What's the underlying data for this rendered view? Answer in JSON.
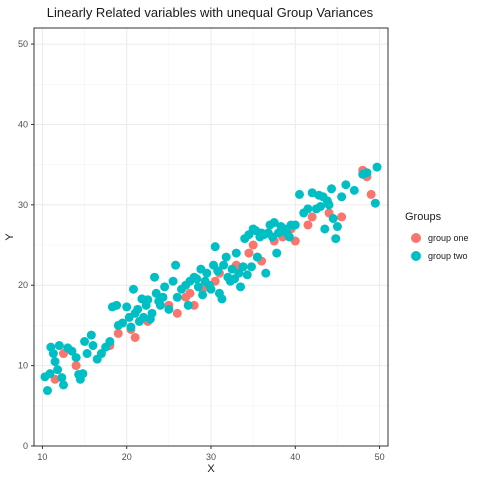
{
  "chart_data": {
    "type": "scatter",
    "title": "Linearly Related variables with unequal Group Variances",
    "xlabel": "X",
    "ylabel": "Y",
    "xlim": [
      9,
      51
    ],
    "ylim": [
      0,
      52
    ],
    "xticks": [
      10,
      20,
      30,
      40,
      50
    ],
    "yticks": [
      0,
      10,
      20,
      30,
      40,
      50
    ],
    "grid": true,
    "legend": {
      "title": "Groups",
      "position": "right"
    },
    "series": [
      {
        "name": "group one",
        "color": "#F8766D",
        "points": [
          [
            11.5,
            8.3
          ],
          [
            12.5,
            11.5
          ],
          [
            14.0,
            10.0
          ],
          [
            18.0,
            12.5
          ],
          [
            19.0,
            14.0
          ],
          [
            20.5,
            14.5
          ],
          [
            21.0,
            13.5
          ],
          [
            22.5,
            15.5
          ],
          [
            25.0,
            17.5
          ],
          [
            26.0,
            16.5
          ],
          [
            27.0,
            18.5
          ],
          [
            27.5,
            19.0
          ],
          [
            28.0,
            17.5
          ],
          [
            29.0,
            19.5
          ],
          [
            30.5,
            20.5
          ],
          [
            31.0,
            21.5
          ],
          [
            33.0,
            22.5
          ],
          [
            34.5,
            24.0
          ],
          [
            35.0,
            25.0
          ],
          [
            35.5,
            23.5
          ],
          [
            36.0,
            23.0
          ],
          [
            37.5,
            25.5
          ],
          [
            38.5,
            26.0
          ],
          [
            39.5,
            27.0
          ],
          [
            40.0,
            25.5
          ],
          [
            41.5,
            27.5
          ],
          [
            42.0,
            28.5
          ],
          [
            44.0,
            29.0
          ],
          [
            45.5,
            28.5
          ],
          [
            48.0,
            34.3
          ],
          [
            48.5,
            33.5
          ],
          [
            49.0,
            31.3
          ]
        ]
      },
      {
        "name": "group two",
        "color": "#00BFC4",
        "points": [
          [
            10.3,
            8.6
          ],
          [
            10.6,
            6.9
          ],
          [
            10.9,
            9.0
          ],
          [
            11.0,
            12.3
          ],
          [
            11.3,
            11.5
          ],
          [
            11.5,
            10.5
          ],
          [
            11.8,
            9.5
          ],
          [
            12.0,
            12.5
          ],
          [
            12.3,
            8.5
          ],
          [
            12.5,
            7.6
          ],
          [
            13.0,
            12.2
          ],
          [
            13.5,
            11.8
          ],
          [
            14.0,
            11.0
          ],
          [
            14.3,
            8.9
          ],
          [
            14.5,
            8.3
          ],
          [
            14.8,
            9.0
          ],
          [
            15.0,
            13.0
          ],
          [
            15.3,
            11.5
          ],
          [
            15.8,
            13.8
          ],
          [
            16.0,
            12.5
          ],
          [
            16.5,
            10.8
          ],
          [
            17.0,
            11.5
          ],
          [
            17.5,
            12.3
          ],
          [
            18.0,
            13.0
          ],
          [
            18.3,
            17.3
          ],
          [
            18.8,
            17.5
          ],
          [
            19.0,
            15.0
          ],
          [
            19.5,
            15.3
          ],
          [
            20.0,
            17.3
          ],
          [
            20.3,
            16.0
          ],
          [
            20.5,
            14.8
          ],
          [
            20.8,
            19.5
          ],
          [
            21.0,
            16.5
          ],
          [
            21.3,
            17.0
          ],
          [
            21.5,
            15.5
          ],
          [
            21.8,
            18.3
          ],
          [
            22.0,
            16.0
          ],
          [
            22.3,
            17.5
          ],
          [
            22.5,
            18.2
          ],
          [
            22.8,
            15.8
          ],
          [
            23.0,
            16.5
          ],
          [
            23.3,
            21.0
          ],
          [
            23.5,
            19.0
          ],
          [
            23.8,
            18.0
          ],
          [
            24.0,
            17.5
          ],
          [
            24.3,
            18.5
          ],
          [
            24.5,
            19.8
          ],
          [
            25.0,
            17.0
          ],
          [
            25.5,
            20.5
          ],
          [
            25.8,
            22.5
          ],
          [
            26.0,
            18.5
          ],
          [
            26.5,
            19.5
          ],
          [
            27.0,
            20.0
          ],
          [
            27.3,
            17.5
          ],
          [
            27.5,
            20.5
          ],
          [
            28.0,
            21.0
          ],
          [
            28.3,
            20.8
          ],
          [
            28.5,
            19.8
          ],
          [
            28.8,
            22.0
          ],
          [
            29.0,
            18.8
          ],
          [
            29.3,
            20.5
          ],
          [
            29.5,
            21.5
          ],
          [
            29.8,
            20.0
          ],
          [
            30.0,
            19.5
          ],
          [
            30.3,
            22.5
          ],
          [
            30.5,
            24.8
          ],
          [
            30.8,
            21.8
          ],
          [
            31.0,
            19.0
          ],
          [
            31.3,
            18.3
          ],
          [
            31.5,
            22.5
          ],
          [
            31.8,
            23.5
          ],
          [
            32.0,
            21.0
          ],
          [
            32.3,
            20.5
          ],
          [
            32.5,
            22.0
          ],
          [
            32.8,
            20.8
          ],
          [
            33.0,
            24.0
          ],
          [
            33.3,
            21.5
          ],
          [
            33.5,
            19.8
          ],
          [
            33.8,
            22.3
          ],
          [
            34.0,
            25.8
          ],
          [
            34.3,
            21.3
          ],
          [
            34.5,
            26.3
          ],
          [
            34.8,
            22.3
          ],
          [
            35.0,
            27.0
          ],
          [
            35.3,
            26.8
          ],
          [
            35.5,
            23.5
          ],
          [
            35.8,
            26.0
          ],
          [
            36.0,
            26.5
          ],
          [
            36.3,
            26.3
          ],
          [
            36.5,
            21.5
          ],
          [
            36.8,
            26.5
          ],
          [
            37.0,
            27.5
          ],
          [
            37.3,
            26.0
          ],
          [
            37.5,
            27.8
          ],
          [
            37.8,
            24.0
          ],
          [
            38.0,
            26.5
          ],
          [
            38.3,
            27.3
          ],
          [
            38.5,
            26.8
          ],
          [
            38.8,
            27.0
          ],
          [
            39.0,
            26.5
          ],
          [
            39.3,
            26.0
          ],
          [
            39.5,
            27.5
          ],
          [
            40.0,
            27.5
          ],
          [
            40.5,
            31.3
          ],
          [
            41.0,
            29.0
          ],
          [
            41.5,
            29.5
          ],
          [
            42.0,
            31.5
          ],
          [
            42.5,
            29.5
          ],
          [
            42.8,
            31.2
          ],
          [
            43.0,
            29.8
          ],
          [
            43.3,
            31.0
          ],
          [
            43.5,
            27.0
          ],
          [
            43.8,
            30.5
          ],
          [
            44.0,
            30.0
          ],
          [
            44.3,
            32.0
          ],
          [
            44.5,
            28.3
          ],
          [
            44.8,
            25.8
          ],
          [
            45.0,
            27.3
          ],
          [
            45.5,
            31.0
          ],
          [
            46.0,
            32.5
          ],
          [
            47.0,
            31.8
          ],
          [
            48.0,
            33.8
          ],
          [
            48.5,
            34.0
          ],
          [
            49.5,
            30.2
          ],
          [
            49.7,
            34.7
          ]
        ]
      }
    ]
  }
}
